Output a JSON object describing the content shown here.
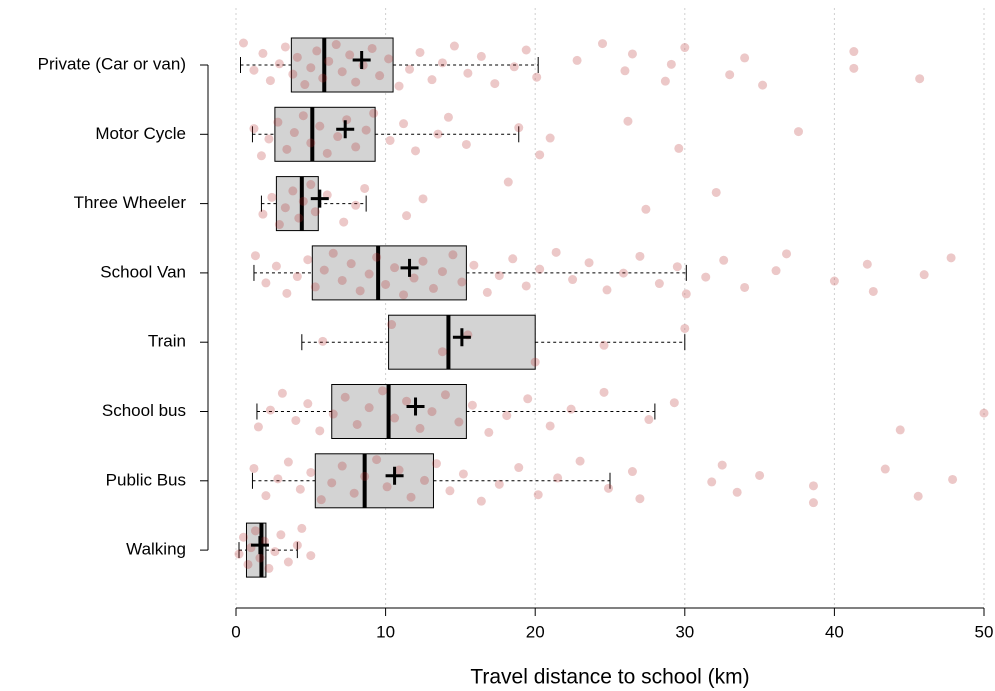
{
  "chart_data": {
    "type": "box",
    "xlabel": "Travel distance to school (km)",
    "categories": [
      "Private (Car or van)",
      "Motor Cycle",
      "Three Wheeler",
      "School Van",
      "Train",
      "School bus",
      "Public Bus",
      "Walking"
    ],
    "xlim": [
      0,
      50
    ],
    "xticks": [
      0,
      10,
      20,
      30,
      40,
      50
    ],
    "grid": true,
    "box_color": "#d3d3d3",
    "point_color": "#b22222",
    "boxes": [
      {
        "whislo": 0.3,
        "q1": 3.7,
        "med": 5.9,
        "q3": 10.5,
        "whishi": 20.2,
        "mean": 8.4,
        "points": [
          0.5,
          1.2,
          1.8,
          2.3,
          2.9,
          3.3,
          3.8,
          4.1,
          4.6,
          5.0,
          5.4,
          5.8,
          6.2,
          6.7,
          7.1,
          7.6,
          8.0,
          8.5,
          9.1,
          9.6,
          10.2,
          10.9,
          11.6,
          12.3,
          13.1,
          13.8,
          14.6,
          15.5,
          16.4,
          17.3,
          18.6,
          19.4,
          20.1,
          22.8,
          24.5,
          26.0,
          26.5,
          28.7,
          29.1,
          30.0,
          33.0,
          34.0,
          35.2,
          41.3,
          41.3,
          45.7
        ]
      },
      {
        "whislo": 1.1,
        "q1": 2.6,
        "med": 5.1,
        "q3": 9.3,
        "whishi": 18.9,
        "mean": 7.3,
        "points": [
          1.2,
          1.7,
          2.2,
          2.8,
          3.4,
          3.9,
          4.5,
          5.0,
          5.6,
          6.1,
          6.8,
          7.4,
          8.0,
          8.7,
          9.2,
          10.3,
          11.2,
          12.0,
          13.5,
          14.2,
          15.4,
          18.9,
          20.3,
          21.0,
          26.2,
          29.6,
          37.6
        ]
      },
      {
        "whislo": 1.7,
        "q1": 2.7,
        "med": 4.4,
        "q3": 5.5,
        "whishi": 8.7,
        "mean": 5.6,
        "points": [
          1.8,
          2.4,
          2.9,
          3.3,
          3.8,
          4.2,
          4.5,
          5.0,
          5.3,
          6.1,
          7.2,
          8.0,
          8.6,
          11.4,
          12.5,
          18.2,
          27.4,
          32.1
        ]
      },
      {
        "whislo": 1.2,
        "q1": 5.1,
        "med": 9.5,
        "q3": 15.4,
        "whishi": 30.1,
        "mean": 11.6,
        "points": [
          1.3,
          2.0,
          2.7,
          3.4,
          4.1,
          4.8,
          5.3,
          5.9,
          6.5,
          7.1,
          7.7,
          8.3,
          8.9,
          9.4,
          10.0,
          10.6,
          11.2,
          11.9,
          12.5,
          13.2,
          13.8,
          14.5,
          15.1,
          15.9,
          16.8,
          17.6,
          18.5,
          19.4,
          20.3,
          21.4,
          22.5,
          23.6,
          24.8,
          25.9,
          27.0,
          28.3,
          29.5,
          30.1,
          31.4,
          32.6,
          34.0,
          36.1,
          36.8,
          40.0,
          42.2,
          42.6,
          46.0,
          47.8
        ]
      },
      {
        "whislo": 4.4,
        "q1": 10.2,
        "med": 14.2,
        "q3": 20.0,
        "whishi": 30.0,
        "mean": 15.1,
        "points": [
          5.8,
          10.4,
          13.8,
          15.5,
          20.0,
          24.6,
          30.0
        ]
      },
      {
        "whislo": 1.4,
        "q1": 6.4,
        "med": 10.2,
        "q3": 15.4,
        "whishi": 28.0,
        "mean": 12.0,
        "points": [
          1.5,
          2.3,
          3.1,
          4.0,
          4.8,
          5.6,
          6.5,
          7.3,
          8.1,
          8.9,
          9.8,
          10.6,
          11.4,
          12.3,
          13.1,
          14.0,
          14.9,
          15.8,
          16.9,
          18.1,
          19.5,
          21.0,
          22.4,
          24.6,
          27.6,
          29.3,
          44.4,
          50.0
        ]
      },
      {
        "whislo": 1.1,
        "q1": 5.3,
        "med": 8.6,
        "q3": 13.2,
        "whishi": 25.0,
        "mean": 10.6,
        "points": [
          1.2,
          2.0,
          2.8,
          3.5,
          4.3,
          5.0,
          5.7,
          6.4,
          7.1,
          7.9,
          8.6,
          9.4,
          10.1,
          10.9,
          11.7,
          12.6,
          13.4,
          14.3,
          15.2,
          16.4,
          17.6,
          18.9,
          20.2,
          21.5,
          23.0,
          24.9,
          26.5,
          27.0,
          31.8,
          32.5,
          33.5,
          35.0,
          38.6,
          38.6,
          43.4,
          45.6,
          47.9
        ]
      },
      {
        "whislo": 0.2,
        "q1": 0.7,
        "med": 1.7,
        "q3": 2.0,
        "whishi": 4.1,
        "mean": 1.6,
        "points": [
          0.2,
          0.5,
          0.8,
          1.0,
          1.3,
          1.6,
          1.9,
          2.2,
          2.6,
          3.0,
          3.5,
          4.1,
          4.4,
          5.0
        ]
      }
    ]
  }
}
